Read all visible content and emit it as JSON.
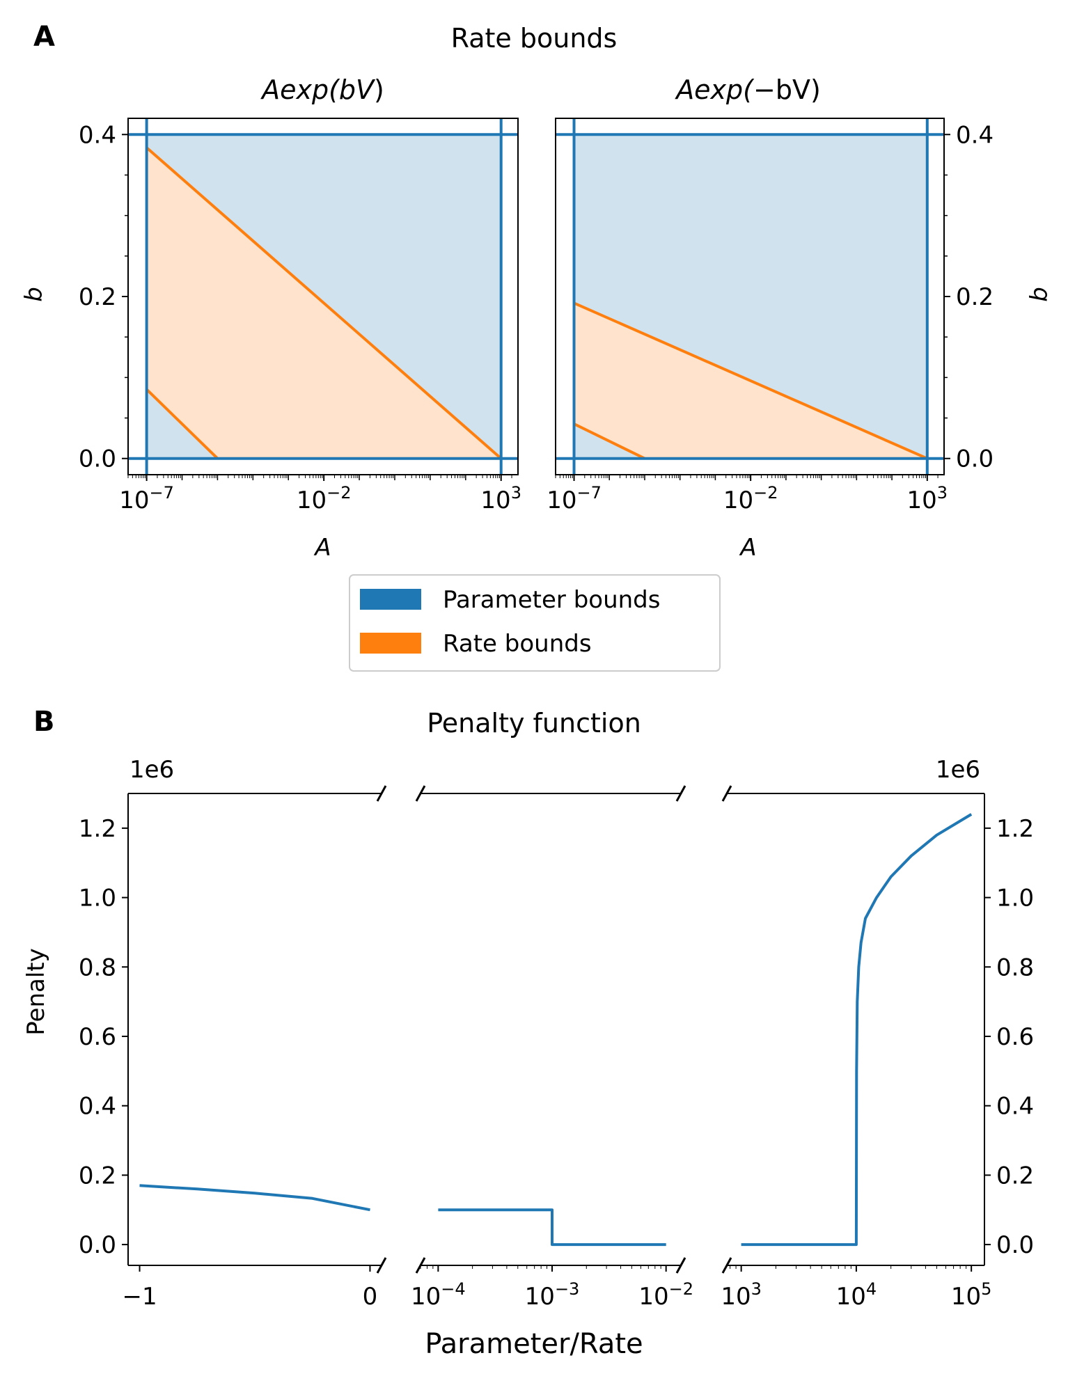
{
  "panels": {
    "a": {
      "letter": "A",
      "title": "Rate bounds"
    },
    "b": {
      "letter": "B",
      "title": "Penalty function"
    }
  },
  "colors": {
    "parameter": "#1f77b4",
    "rate": "#ff7f0e",
    "parameter_fill": "#d1e2ef",
    "rate_fill": "#ffe3cc"
  },
  "legend": {
    "placement": "below panel A",
    "items": [
      {
        "label": "Parameter bounds",
        "color": "#1f77b4"
      },
      {
        "label": "Rate bounds",
        "color": "#ff7f0e"
      }
    ]
  },
  "chart_data": [
    {
      "type": "area",
      "subtitle_parts": [
        "Aexp(",
        "bV",
        ")"
      ],
      "xlabel": "A",
      "ylabel": "b",
      "xscale": "log",
      "xlim": [
        3e-08,
        3000
      ],
      "ylim": [
        -0.02,
        0.42
      ],
      "xticks": [
        {
          "base": "10",
          "exp": "−7",
          "value": 1e-07
        },
        {
          "base": "10",
          "exp": "−2",
          "value": 0.01
        },
        {
          "base": "10",
          "exp": "3",
          "value": 1000
        }
      ],
      "yticks": [
        "0.0",
        "0.2",
        "0.4"
      ],
      "ytick_values": [
        0,
        0.2,
        0.4
      ],
      "yaxis_side": "left",
      "parameter_bounds": {
        "A": [
          1e-07,
          1000
        ],
        "b": [
          0,
          0.4
        ]
      },
      "rate_bounds_region": [
        {
          "A": 1e-07,
          "b": 0.0
        },
        {
          "A": 1e-07,
          "b": 0.0853
        },
        {
          "A": 1e-05,
          "b": 0.0
        },
        {
          "A": 1e-07,
          "b": 0.0
        },
        {
          "A": 1e-07,
          "b": 0.3838
        },
        {
          "A": 1000,
          "b": 0.0
        }
      ],
      "series": [
        {
          "kind": "rate-lower",
          "points": [
            [
              1e-07,
              0.0853
            ],
            [
              1e-05,
              0.0
            ]
          ]
        },
        {
          "kind": "rate-upper",
          "points": [
            [
              1e-07,
              0.3838
            ],
            [
              1000,
              0.0
            ]
          ]
        }
      ]
    },
    {
      "type": "area",
      "subtitle_parts": [
        "Aexp(",
        "−bV",
        ")"
      ],
      "xlabel": "A",
      "ylabel": "b",
      "xscale": "log",
      "xlim": [
        3e-08,
        3000
      ],
      "ylim": [
        -0.02,
        0.42
      ],
      "xticks": [
        {
          "base": "10",
          "exp": "−7",
          "value": 1e-07
        },
        {
          "base": "10",
          "exp": "−2",
          "value": 0.01
        },
        {
          "base": "10",
          "exp": "3",
          "value": 1000
        }
      ],
      "yticks": [
        "0.0",
        "0.2",
        "0.4"
      ],
      "ytick_values": [
        0,
        0.2,
        0.4
      ],
      "yaxis_side": "right",
      "parameter_bounds": {
        "A": [
          1e-07,
          1000
        ],
        "b": [
          0,
          0.4
        ]
      },
      "series": [
        {
          "kind": "rate-lower",
          "points": [
            [
              1e-07,
              0.0427
            ],
            [
              1e-05,
              0.0
            ]
          ]
        },
        {
          "kind": "rate-upper",
          "points": [
            [
              1e-07,
              0.1919
            ],
            [
              1000,
              0.0
            ]
          ]
        }
      ]
    },
    {
      "type": "line",
      "xlabel": "Parameter/Rate",
      "ylabel": "Penalty",
      "y_offset_text": "1e6",
      "ylim": [
        -0.06,
        1.3
      ],
      "yticks": [
        "0.0",
        "0.2",
        "0.4",
        "0.6",
        "0.8",
        "1.0",
        "1.2"
      ],
      "ytick_values": [
        0,
        0.2,
        0.4,
        0.6,
        0.8,
        1.0,
        1.2
      ],
      "broken_x_axis": true,
      "segments": [
        {
          "xscale": "linear",
          "xlim": [
            -1.05,
            0.05
          ],
          "xticks": [
            {
              "text": "−1",
              "value": -1
            },
            {
              "text": "0",
              "value": 0
            }
          ],
          "line": [
            [
              -1,
              0.17
            ],
            [
              -0.75,
              0.16
            ],
            [
              -0.5,
              0.148
            ],
            [
              -0.25,
              0.133
            ],
            [
              0,
              0.1
            ]
          ]
        },
        {
          "xscale": "log",
          "xlim": [
            7e-05,
            0.0135
          ],
          "xticks": [
            {
              "base": "10",
              "exp": "−4",
              "value": 0.0001
            },
            {
              "base": "10",
              "exp": "−3",
              "value": 0.001
            },
            {
              "base": "10",
              "exp": "−2",
              "value": 0.01
            }
          ],
          "line": [
            [
              0.0001,
              0.1
            ],
            [
              0.001,
              0.1
            ],
            [
              0.001,
              0.0
            ],
            [
              0.01,
              0.0
            ]
          ]
        },
        {
          "xscale": "log",
          "xlim": [
            750,
            130000
          ],
          "xticks": [
            {
              "base": "10",
              "exp": "3",
              "value": 1000
            },
            {
              "base": "10",
              "exp": "4",
              "value": 10000
            },
            {
              "base": "10",
              "exp": "5",
              "value": 100000
            }
          ],
          "line": [
            [
              1000,
              0.0
            ],
            [
              10000,
              0.0
            ],
            [
              10050,
              0.5
            ],
            [
              10200,
              0.7
            ],
            [
              10500,
              0.8
            ],
            [
              11000,
              0.87
            ],
            [
              12000,
              0.94
            ],
            [
              15000,
              1.0
            ],
            [
              20000,
              1.06
            ],
            [
              30000,
              1.12
            ],
            [
              50000,
              1.18
            ],
            [
              100000,
              1.24
            ]
          ]
        }
      ]
    }
  ]
}
